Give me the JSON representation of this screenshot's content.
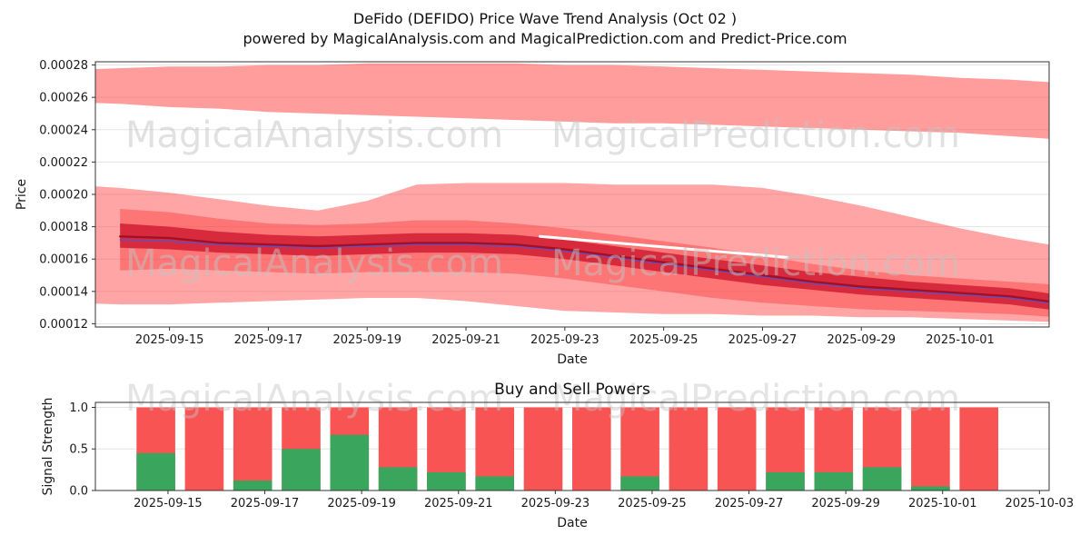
{
  "title": {
    "line1": "DeFido (DEFIDO) Price Wave Trend Analysis (Oct 02 )",
    "line2": "powered by MagicalAnalysis.com and MagicalPrediction.com and Predict-Price.com"
  },
  "watermarks": {
    "left_text": "MagicalAnalysis.com",
    "right_text": "MagicalPrediction.com",
    "color": "#c4c4c4"
  },
  "chart_data": [
    {
      "type": "area",
      "name": "price-wave-trend",
      "xlabel": "Date",
      "ylabel": "Price",
      "x_unit": "days since 2025-09-15",
      "xlim_days": [
        -1.5,
        17.8
      ],
      "ylim": [
        0.000118,
        0.000282
      ],
      "yticks": [
        0.00012,
        0.00014,
        0.00016,
        0.00018,
        0.0002,
        0.00022,
        0.00024,
        0.00026,
        0.00028
      ],
      "ytick_labels": [
        "0.00012",
        "0.00014",
        "0.00016",
        "0.00018",
        "0.00020",
        "0.00022",
        "0.00024",
        "0.00026",
        "0.00028"
      ],
      "xtick_days": [
        0,
        2,
        4,
        6,
        8,
        10,
        12,
        14,
        16
      ],
      "xtick_labels": [
        "2025-09-15",
        "2025-09-17",
        "2025-09-19",
        "2025-09-21",
        "2025-09-23",
        "2025-09-25",
        "2025-09-27",
        "2025-09-29",
        "2025-10-01"
      ],
      "grid_color": "#e3e3e3",
      "bands": [
        {
          "name": "upper-forecast-band",
          "color": "rgba(255,75,75,0.55)",
          "x_days": [
            -2,
            -1,
            0,
            1,
            2,
            3,
            4,
            5,
            6,
            7,
            8,
            9,
            10,
            11,
            12,
            13,
            14,
            15,
            16,
            17,
            18
          ],
          "upper": [
            0.000277,
            0.000278,
            0.000279,
            0.000279,
            0.00028,
            0.00028,
            0.000281,
            0.000281,
            0.000281,
            0.000281,
            0.00028,
            0.00028,
            0.000279,
            0.000278,
            0.000277,
            0.000276,
            0.000275,
            0.000274,
            0.000272,
            0.000271,
            0.000269
          ],
          "lower": [
            0.000257,
            0.000256,
            0.000254,
            0.000253,
            0.000251,
            0.00025,
            0.000249,
            0.000248,
            0.000247,
            0.000246,
            0.000245,
            0.000244,
            0.000244,
            0.000243,
            0.000242,
            0.000241,
            0.00024,
            0.000239,
            0.000238,
            0.000236,
            0.000234
          ]
        },
        {
          "name": "outer-band",
          "color": "rgba(255,75,75,0.5)",
          "x_days": [
            -2,
            -1,
            0,
            1,
            2,
            3,
            4,
            5,
            6,
            7,
            8,
            9,
            10,
            11,
            12,
            13,
            14,
            15,
            16,
            17,
            18
          ],
          "upper": [
            0.000206,
            0.000204,
            0.000201,
            0.000197,
            0.000193,
            0.00019,
            0.000196,
            0.000206,
            0.000207,
            0.000207,
            0.000207,
            0.000206,
            0.000206,
            0.000206,
            0.000204,
            0.000199,
            0.000193,
            0.000186,
            0.000179,
            0.000173,
            0.000168
          ],
          "lower": [
            0.000133,
            0.000132,
            0.000132,
            0.000133,
            0.000134,
            0.000135,
            0.000136,
            0.000136,
            0.000134,
            0.000131,
            0.000128,
            0.000127,
            0.000126,
            0.000126,
            0.000125,
            0.000125,
            0.000124,
            0.000124,
            0.000123,
            0.000122,
            0.000121
          ]
        },
        {
          "name": "mid-band",
          "color": "rgba(250,45,45,0.4)",
          "x_days": [
            -1,
            0,
            1,
            2,
            3,
            4,
            5,
            6,
            7,
            8,
            9,
            10,
            11,
            12,
            13,
            14,
            15,
            16,
            17,
            18
          ],
          "upper": [
            0.000191,
            0.000189,
            0.000185,
            0.000182,
            0.000181,
            0.000182,
            0.000184,
            0.000184,
            0.000182,
            0.000179,
            0.000175,
            0.000171,
            0.000167,
            0.000162,
            0.000157,
            0.000153,
            0.00015,
            0.000148,
            0.000146,
            0.000144
          ],
          "lower": [
            0.000153,
            0.000154,
            0.000153,
            0.000152,
            0.000151,
            0.000152,
            0.000152,
            0.000152,
            0.000151,
            0.000148,
            0.000144,
            0.00014,
            0.000136,
            0.000133,
            0.000131,
            0.000129,
            0.000128,
            0.000127,
            0.000126,
            0.000124
          ]
        },
        {
          "name": "core-band",
          "color": "rgba(205,20,45,0.78)",
          "x_days": [
            -1,
            0,
            1,
            2,
            3,
            4,
            5,
            6,
            7,
            8,
            9,
            10,
            11,
            12,
            13,
            14,
            15,
            16,
            17,
            18
          ],
          "upper": [
            0.000182,
            0.00018,
            0.000177,
            0.000175,
            0.000174,
            0.000175,
            0.000176,
            0.000176,
            0.000175,
            0.000172,
            0.000168,
            0.000164,
            0.00016,
            0.000156,
            0.000152,
            0.000149,
            0.000146,
            0.000144,
            0.000142,
            0.000138
          ],
          "lower": [
            0.000167,
            0.000166,
            0.000164,
            0.000163,
            0.000162,
            0.000163,
            0.000164,
            0.000164,
            0.000163,
            0.00016,
            0.000156,
            0.000152,
            0.000148,
            0.000144,
            0.000141,
            0.000138,
            0.000136,
            0.000134,
            0.000132,
            0.000128
          ]
        }
      ],
      "lines": [
        {
          "name": "forecast-gap-line",
          "color": "#ffffff",
          "width": 3,
          "x_days": [
            7.5,
            12.5
          ],
          "values": [
            0.000174,
            0.000161
          ]
        },
        {
          "name": "trend-line",
          "color": "#5f50c7",
          "width": 1.4,
          "x_days": [
            -1,
            0,
            1,
            2,
            3,
            4,
            5,
            6,
            7,
            8,
            9,
            10,
            11,
            12,
            13,
            14,
            15,
            16,
            17,
            18
          ],
          "values": [
            0.000172,
            0.000171,
            0.000169,
            0.000168,
            0.000167,
            0.000168,
            0.000169,
            0.000169,
            0.000168,
            0.000165,
            0.000161,
            0.000157,
            0.000153,
            0.000149,
            0.000145,
            0.000142,
            0.00014,
            0.000138,
            0.000136,
            0.000132
          ]
        },
        {
          "name": "price-line",
          "color": "#a50f23",
          "width": 2.4,
          "x_days": [
            -1,
            0,
            1,
            2,
            3,
            4,
            5,
            6,
            7,
            8,
            9,
            10,
            11,
            12,
            13,
            14,
            15,
            16,
            17,
            18
          ],
          "values": [
            0.000174,
            0.000173,
            0.00017,
            0.000169,
            0.000168,
            0.000169,
            0.00017,
            0.00017,
            0.000169,
            0.000166,
            0.000162,
            0.000158,
            0.000154,
            0.00015,
            0.000146,
            0.000143,
            0.000141,
            0.000139,
            0.000137,
            0.000133
          ]
        }
      ]
    },
    {
      "type": "bar",
      "name": "buy-sell-powers",
      "title": "Buy and Sell Powers",
      "xlabel": "Date",
      "ylabel": "Signal Strength",
      "x_unit": "days since 2025-09-15",
      "xlim_days": [
        -1.5,
        18.2
      ],
      "ylim": [
        0,
        1.06
      ],
      "yticks": [
        0,
        0.5,
        1
      ],
      "ytick_labels": [
        "0.0",
        "0.5",
        "1.0"
      ],
      "xtick_days": [
        0,
        2,
        4,
        6,
        8,
        10,
        12,
        14,
        16,
        18
      ],
      "xtick_labels": [
        "2025-09-15",
        "2025-09-17",
        "2025-09-19",
        "2025-09-21",
        "2025-09-23",
        "2025-09-25",
        "2025-09-27",
        "2025-09-29",
        "2025-10-01",
        "2025-10-03"
      ],
      "grid_color": "#e3e3e3",
      "bar_width_days": 0.8,
      "bars": {
        "dates": [
          "2025-09-14",
          "2025-09-15",
          "2025-09-16",
          "2025-09-17",
          "2025-09-18",
          "2025-09-19",
          "2025-09-20",
          "2025-09-21",
          "2025-09-22",
          "2025-09-23",
          "2025-09-24",
          "2025-09-25",
          "2025-09-26",
          "2025-09-27",
          "2025-09-28",
          "2025-09-29",
          "2025-09-30",
          "2025-10-01"
        ],
        "x_days": [
          -0.25,
          0.75,
          1.75,
          2.75,
          3.75,
          4.75,
          5.75,
          6.75,
          7.75,
          8.75,
          9.75,
          10.75,
          11.75,
          12.75,
          13.75,
          14.75,
          15.75,
          16.75
        ],
        "series": [
          {
            "name": "sell-power",
            "color": "#f85454",
            "values": [
              1,
              1,
              1,
              1,
              1,
              1,
              1,
              1,
              1,
              1,
              1,
              1,
              1,
              1,
              1,
              1,
              1,
              1
            ]
          },
          {
            "name": "buy-power",
            "color": "#3aa55c",
            "values": [
              0.45,
              0,
              0.12,
              0.5,
              0.67,
              0.28,
              0.22,
              0.17,
              0,
              0,
              0.17,
              0,
              0,
              0.22,
              0.22,
              0.28,
              0.05,
              0
            ]
          }
        ]
      }
    }
  ]
}
